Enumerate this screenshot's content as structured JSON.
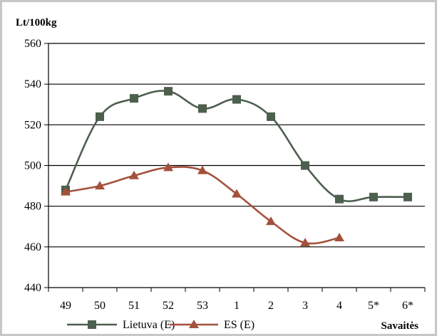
{
  "chart_data": {
    "type": "line",
    "ylabel": "Lt/100kg",
    "xlabel": "Savaitės",
    "categories": [
      "49",
      "50",
      "51",
      "52",
      "53",
      "1",
      "2",
      "3",
      "4",
      "5*",
      "6*"
    ],
    "ylim": [
      440,
      560
    ],
    "yticks": [
      "440",
      "460",
      "480",
      "500",
      "520",
      "540",
      "560"
    ],
    "grid": true,
    "legend_position": "bottom",
    "series": [
      {
        "name": "Lietuva (E)",
        "color": "#4d5f4d",
        "marker": "square",
        "values": [
          488,
          524,
          533,
          536.5,
          528,
          532.5,
          524,
          500,
          483.5,
          484.5,
          484.5
        ]
      },
      {
        "name": "ES (E)",
        "color": "#a4513c",
        "marker": "triangle",
        "values": [
          487,
          490,
          495,
          499,
          497.5,
          486,
          472.5,
          462,
          464.5,
          null,
          null
        ]
      }
    ]
  }
}
